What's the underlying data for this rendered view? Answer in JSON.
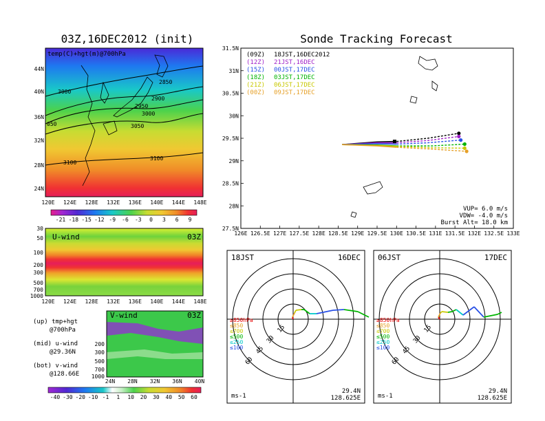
{
  "left": {
    "title": "03Z,16DEC2012 (init)",
    "top_panel": {
      "label": "temp(C)+hgt(m)@700hPa",
      "y_ticks": [
        "44N",
        "40N",
        "36N",
        "32N",
        "28N",
        "24N"
      ],
      "x_ticks": [
        "120E",
        "124E",
        "128E",
        "132E",
        "136E",
        "140E",
        "144E",
        "148E"
      ],
      "contour_labels": [
        "2850",
        "3000",
        "2900",
        "2950",
        "3000",
        "3050",
        "050",
        "3100",
        "3100"
      ],
      "colorbar_labels": [
        "-21",
        "-18",
        "-15",
        "-12",
        "-9",
        "-6",
        "-3",
        "0",
        "3",
        "6",
        "9"
      ]
    },
    "mid_panel": {
      "label": "U-wind",
      "time": "03Z",
      "y_ticks": [
        "30",
        "50",
        "100",
        "200",
        "300",
        "500",
        "700",
        "1000"
      ],
      "x_ticks": [
        "120E",
        "124E",
        "128E",
        "132E",
        "136E",
        "140E",
        "144E",
        "148E"
      ]
    },
    "bot_panel": {
      "label": "V-wind",
      "time": "03Z",
      "y_ticks": [
        "200",
        "300",
        "500",
        "700",
        "1000"
      ],
      "x_ticks": [
        "24N",
        "28N",
        "32N",
        "36N",
        "40N"
      ],
      "colorbar_labels": [
        "-40",
        "-30",
        "-20",
        "-10",
        "-1",
        "1",
        "10",
        "20",
        "30",
        "40",
        "50",
        "60"
      ]
    },
    "legend_notes": [
      {
        "a": "(up) tmp+hgt",
        "b": "@700hPa"
      },
      {
        "a": "(mid) u-wind",
        "b": "@29.36N"
      },
      {
        "a": "(bot) v-wind",
        "b": "@128.66E"
      }
    ]
  },
  "tracking": {
    "title": "Sonde Tracking Forecast",
    "y_ticks": [
      "31.5N",
      "31N",
      "30.5N",
      "30N",
      "29.5N",
      "29N",
      "28.5N",
      "28N",
      "27.5N"
    ],
    "x_ticks": [
      "126E",
      "126.5E",
      "127E",
      "127.5E",
      "128E",
      "128.5E",
      "129E",
      "129.5E",
      "130E",
      "130.5E",
      "131E",
      "131.5E",
      "132E",
      "132.5E",
      "133E"
    ],
    "legend": [
      {
        "code": "(09Z)",
        "time": "18JST,16DEC2012",
        "color": "#000000"
      },
      {
        "code": "(12Z)",
        "time": "21JST,16DEC",
        "color": "#a020c8"
      },
      {
        "code": "(15Z)",
        "time": "00JST,17DEC",
        "color": "#2850e6"
      },
      {
        "code": "(18Z)",
        "time": "03JST,17DEC",
        "color": "#00b400"
      },
      {
        "code": "(21Z)",
        "time": "06JST,17DEC",
        "color": "#c8c800"
      },
      {
        "code": "(00Z)",
        "time": "09JST,17DEC",
        "color": "#e6a028"
      }
    ],
    "params": [
      "VUP= 6.0 m/s",
      "VDW= -4.0 m/s",
      "Burst Alt= 18.0 km"
    ]
  },
  "hodographs": [
    {
      "left": "18JST",
      "right": "16DEC",
      "lat": "29.4N",
      "lon": "128.625E",
      "unit": "ms-1",
      "rings": [
        "15",
        "30",
        "45",
        "60"
      ],
      "levels": [
        {
          "label": "≥850hPa",
          "color": "#e60000"
        },
        {
          "label": "≤850",
          "color": "#e6a028"
        },
        {
          "label": "≤700",
          "color": "#c8c800"
        },
        {
          "label": "≤500",
          "color": "#00b400"
        },
        {
          "label": "≤250",
          "color": "#00c8c8"
        },
        {
          "label": "≤100",
          "color": "#2850e6"
        }
      ]
    },
    {
      "left": "06JST",
      "right": "17DEC",
      "lat": "29.4N",
      "lon": "128.625E",
      "unit": "ms-1",
      "rings": [
        "15",
        "30",
        "45",
        "60"
      ],
      "levels": [
        {
          "label": "≥850hPa",
          "color": "#e60000"
        },
        {
          "label": "≤850",
          "color": "#e6a028"
        },
        {
          "label": "≤700",
          "color": "#c8c800"
        },
        {
          "label": "≤500",
          "color": "#00b400"
        },
        {
          "label": "≤250",
          "color": "#00c8c8"
        },
        {
          "label": "≤100",
          "color": "#2850e6"
        }
      ]
    }
  ],
  "chart_data": [
    {
      "type": "line",
      "title": "Sonde Tracking Forecast",
      "xlim": [
        126,
        133
      ],
      "ylim": [
        27.5,
        31.5
      ],
      "x_unit": "longitude E",
      "y_unit": "latitude N",
      "series": [
        {
          "name": "(09Z) 18JST,16DEC2012",
          "color": "#000000",
          "x": [
            128.6,
            129.5,
            130.0,
            130.8,
            131.6
          ],
          "y": [
            29.36,
            29.42,
            29.43,
            29.5,
            29.61
          ]
        },
        {
          "name": "(12Z) 21JST,16DEC",
          "color": "#a020c8",
          "x": [
            128.6,
            129.5,
            130.0,
            130.8,
            131.6
          ],
          "y": [
            29.36,
            29.4,
            29.4,
            29.45,
            29.54
          ]
        },
        {
          "name": "(15Z) 00JST,17DEC",
          "color": "#2850e6",
          "x": [
            128.6,
            129.5,
            130.0,
            130.8,
            131.65
          ],
          "y": [
            29.36,
            29.38,
            29.37,
            29.4,
            29.46
          ]
        },
        {
          "name": "(18Z) 03JST,17DEC",
          "color": "#00b400",
          "x": [
            128.6,
            129.5,
            130.0,
            130.9,
            131.75
          ],
          "y": [
            29.36,
            29.35,
            29.33,
            29.33,
            29.37
          ]
        },
        {
          "name": "(21Z) 06JST,17DEC",
          "color": "#c8c800",
          "x": [
            128.6,
            129.5,
            130.0,
            130.9,
            131.75
          ],
          "y": [
            29.36,
            29.34,
            29.32,
            29.29,
            29.28
          ]
        },
        {
          "name": "(00Z) 09JST,17DEC",
          "color": "#e6a028",
          "x": [
            128.6,
            129.5,
            130.0,
            130.9,
            131.8
          ],
          "y": [
            29.36,
            29.33,
            29.3,
            29.26,
            29.21
          ]
        }
      ],
      "launch_point": {
        "x": 129.95,
        "y": 29.43
      }
    }
  ]
}
